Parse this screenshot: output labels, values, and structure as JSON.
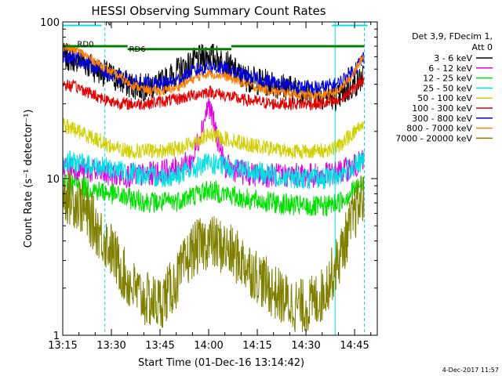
{
  "chart_data": {
    "type": "line",
    "title": "HESSI Observing Summary Count Rates",
    "xlabel": "Start Time (01-Dec-16 13:14:42)",
    "ylabel": "Count Rate (s⁻¹ detector⁻¹)",
    "y_scale": "log",
    "ylim": [
      1,
      100
    ],
    "xlim": [
      "13:15",
      "14:52"
    ],
    "x_ticks": [
      "13:15",
      "13:30",
      "13:45",
      "14:00",
      "14:15",
      "14:30",
      "14:45"
    ],
    "y_ticks": [
      "1",
      "10",
      "100"
    ],
    "legend_header": [
      "Det 3,9, FDecim 1,",
      "Att 0"
    ],
    "footer_date": "4-Dec-2017 11:57",
    "legend_position": "right",
    "grid": false,
    "series": [
      {
        "name": "3 - 6 keV",
        "color": "#000000",
        "x": [
          "13:15",
          "13:20",
          "13:25",
          "13:30",
          "13:35",
          "13:40",
          "13:45",
          "13:50",
          "13:55",
          "14:00",
          "14:05",
          "14:10",
          "14:15",
          "14:20",
          "14:25",
          "14:30",
          "14:35",
          "14:40",
          "14:45",
          "14:48"
        ],
        "y": [
          60,
          58,
          50,
          45,
          40,
          38,
          40,
          48,
          55,
          62,
          55,
          45,
          42,
          40,
          38,
          35,
          34,
          33,
          40,
          45
        ]
      },
      {
        "name": "6 - 12 keV",
        "color": "#e000e0",
        "x": [
          "13:15",
          "13:20",
          "13:25",
          "13:30",
          "13:35",
          "13:40",
          "13:45",
          "13:50",
          "13:55",
          "14:00",
          "14:05",
          "14:10",
          "14:15",
          "14:20",
          "14:25",
          "14:30",
          "14:35",
          "14:40",
          "14:45",
          "14:48"
        ],
        "y": [
          12,
          11.5,
          11,
          10.5,
          10.5,
          10.5,
          11,
          11.5,
          13,
          30,
          12,
          11,
          10.5,
          10.5,
          10.5,
          10.5,
          10.5,
          11,
          12,
          13
        ]
      },
      {
        "name": "12 - 25 keV",
        "color": "#00e000",
        "x": [
          "13:15",
          "13:20",
          "13:25",
          "13:30",
          "13:35",
          "13:40",
          "13:45",
          "13:50",
          "13:55",
          "14:00",
          "14:05",
          "14:10",
          "14:15",
          "14:20",
          "14:25",
          "14:30",
          "14:35",
          "14:40",
          "14:45",
          "14:48"
        ],
        "y": [
          9.5,
          9,
          8.5,
          8,
          7.5,
          7.2,
          7,
          7.2,
          7.8,
          8.5,
          8,
          7.5,
          7.2,
          7,
          6.8,
          6.6,
          6.6,
          7,
          8.5,
          9.5
        ]
      },
      {
        "name": "25 - 50 keV",
        "color": "#00e0e0",
        "x": [
          "13:15",
          "13:20",
          "13:25",
          "13:30",
          "13:35",
          "13:40",
          "13:45",
          "13:50",
          "13:55",
          "14:00",
          "14:05",
          "14:10",
          "14:15",
          "14:20",
          "14:25",
          "14:30",
          "14:35",
          "14:40",
          "14:45",
          "14:48"
        ],
        "y": [
          13,
          12.5,
          12,
          11.5,
          11,
          10.5,
          10.2,
          10.5,
          11.5,
          12.5,
          12,
          11.5,
          11,
          10.5,
          10.2,
          10,
          10,
          10.5,
          12,
          13
        ]
      },
      {
        "name": "50 - 100 keV",
        "color": "#d0d000",
        "x": [
          "13:15",
          "13:20",
          "13:25",
          "13:30",
          "13:35",
          "13:40",
          "13:45",
          "13:50",
          "13:55",
          "14:00",
          "14:05",
          "14:10",
          "14:15",
          "14:20",
          "14:25",
          "14:30",
          "14:35",
          "14:40",
          "14:45",
          "14:48"
        ],
        "y": [
          22,
          20,
          18,
          16,
          15,
          15,
          15,
          15.5,
          17,
          19,
          18,
          17,
          16,
          15.5,
          15,
          15,
          15,
          16,
          20,
          23
        ]
      },
      {
        "name": "100 - 300 keV",
        "color": "#e00000",
        "x": [
          "13:15",
          "13:20",
          "13:25",
          "13:30",
          "13:35",
          "13:40",
          "13:45",
          "13:50",
          "13:55",
          "14:00",
          "14:05",
          "14:10",
          "14:15",
          "14:20",
          "14:25",
          "14:30",
          "14:35",
          "14:40",
          "14:45",
          "14:48"
        ],
        "y": [
          40,
          38,
          34,
          31,
          30,
          30,
          31,
          32,
          34,
          36,
          34,
          32,
          31,
          30,
          30,
          30,
          30,
          31,
          38,
          44
        ]
      },
      {
        "name": "300 - 800 keV",
        "color": "#0000e0",
        "x": [
          "13:15",
          "13:20",
          "13:25",
          "13:30",
          "13:35",
          "13:40",
          "13:45",
          "13:50",
          "13:55",
          "14:00",
          "14:05",
          "14:10",
          "14:15",
          "14:20",
          "14:25",
          "14:30",
          "14:35",
          "14:40",
          "14:45",
          "14:48"
        ],
        "y": [
          62,
          58,
          52,
          46,
          42,
          40,
          40,
          42,
          48,
          52,
          50,
          46,
          43,
          41,
          39,
          38,
          38,
          40,
          50,
          60
        ]
      },
      {
        "name": "800 - 7000 keV",
        "color": "#ff8000",
        "x": [
          "13:15",
          "13:20",
          "13:25",
          "13:30",
          "13:35",
          "13:40",
          "13:45",
          "13:50",
          "13:55",
          "14:00",
          "14:05",
          "14:10",
          "14:15",
          "14:20",
          "14:25",
          "14:30",
          "14:35",
          "14:40",
          "14:45",
          "14:48"
        ],
        "y": [
          70,
          65,
          56,
          48,
          41,
          37,
          36,
          38,
          43,
          47,
          45,
          41,
          38,
          36,
          35,
          34,
          34,
          36,
          48,
          62
        ]
      },
      {
        "name": "7000 - 20000 keV",
        "color": "#808000",
        "x": [
          "13:15",
          "13:20",
          "13:25",
          "13:30",
          "13:35",
          "13:40",
          "13:45",
          "13:50",
          "13:55",
          "14:00",
          "14:05",
          "14:10",
          "14:15",
          "14:20",
          "14:25",
          "14:30",
          "14:35",
          "14:40",
          "14:45",
          "14:48"
        ],
        "y": [
          8,
          7,
          5,
          3.5,
          2.2,
          1.7,
          1.6,
          2.2,
          3.5,
          4,
          3.6,
          3,
          2.4,
          1.9,
          1.6,
          1.5,
          1.8,
          3,
          6,
          8
        ]
      }
    ],
    "annotations": [
      {
        "text": "RD0",
        "x": "13:22",
        "y": 68,
        "color": "#008000"
      },
      {
        "text": "RD6",
        "x": "13:38",
        "y": 63,
        "color": "#008000"
      },
      {
        "text": "N",
        "x": "13:29",
        "y": 93,
        "color": "#00e0e0"
      }
    ],
    "state_bars": [
      {
        "kind": "night",
        "color": "#00e0e0",
        "from": "13:15",
        "to": "13:27",
        "y": 95
      },
      {
        "kind": "night",
        "color": "#00e0e0",
        "from": "14:38",
        "to": "14:49",
        "y": 95
      },
      {
        "kind": "decimation",
        "color": "#008000",
        "from": "13:15",
        "to": "13:35",
        "y": 70
      },
      {
        "kind": "decimation",
        "color": "#008000",
        "from": "13:35",
        "to": "14:07",
        "y": 67
      },
      {
        "kind": "decimation",
        "color": "#008000",
        "from": "14:07",
        "to": "14:48",
        "y": 70
      }
    ],
    "saa_lines": [
      "13:15",
      "13:28",
      "14:39",
      "14:48"
    ]
  }
}
